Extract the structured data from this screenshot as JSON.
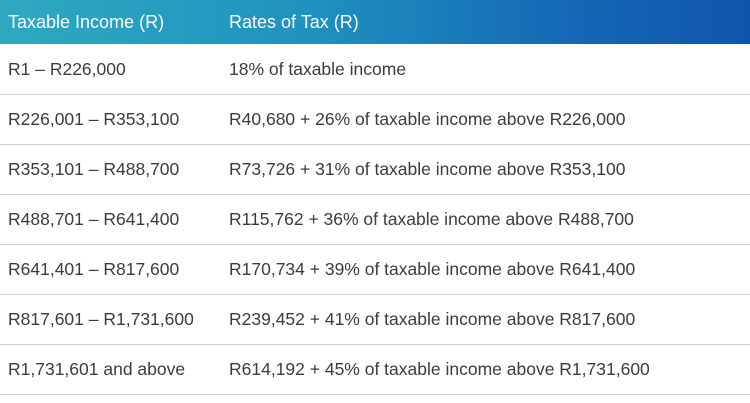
{
  "header": {
    "col1": "Taxable Income (R)",
    "col2": "Rates of Tax (R)"
  },
  "rows": [
    {
      "income": "R1 – R226,000",
      "rate": "18% of taxable income"
    },
    {
      "income": "R226,001 – R353,100",
      "rate": "R40,680 + 26% of taxable income above R226,000"
    },
    {
      "income": "R353,101 – R488,700",
      "rate": "R73,726 + 31% of taxable income above R353,100"
    },
    {
      "income": "R488,701 – R641,400",
      "rate": "R115,762 + 36% of taxable income above R488,700"
    },
    {
      "income": "R641,401 – R817,600",
      "rate": "R170,734 + 39% of taxable income above R641,400"
    },
    {
      "income": "R817,601 – R1,731,600",
      "rate": "R239,452 + 41% of taxable income above R817,600"
    },
    {
      "income": "R1,731,601 and above",
      "rate": "R614,192 + 45% of taxable income above R1,731,600"
    }
  ],
  "colors": {
    "header_gradient_start": "#2fa9c1",
    "header_gradient_end": "#0f55ad",
    "body_text": "#3c3c3c",
    "row_divider": "#c9cfd6"
  }
}
